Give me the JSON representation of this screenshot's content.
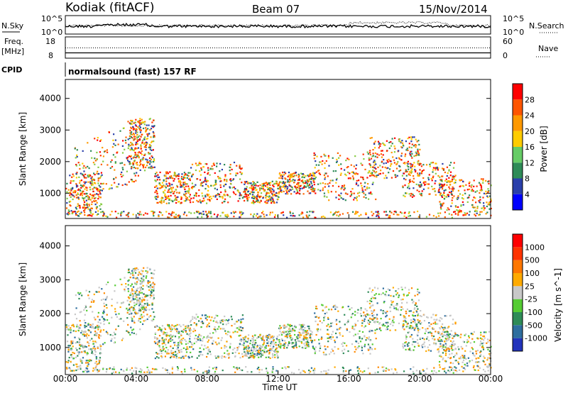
{
  "header": {
    "station": "Kodiak (fitACF)",
    "beam": "Beam 07",
    "date": "15/Nov/2014"
  },
  "labels": {
    "nsky": "N.Sky",
    "nsearch": "N.Search",
    "freq1": "Freq.",
    "freq2": "[MHz]",
    "cpid": "CPID",
    "nave": "Nave",
    "program": "normalsound (fast) 157 RF",
    "sky_hi": "10^5",
    "sky_lo": "10^0",
    "search_hi": "10^5",
    "search_lo": "10^0",
    "freq_hi": "18",
    "freq_lo": "8",
    "nave_hi": "60",
    "nave_lo": "0"
  },
  "chart_data": [
    {
      "type": "line",
      "panel": "noise",
      "series": [
        {
          "name": "N.Sky",
          "style": "solid"
        },
        {
          "name": "N.Search",
          "style": "dotted"
        }
      ],
      "ylabel_left": "N.Sky",
      "ylabel_right": "N.Search",
      "ylim": [
        "10^0",
        "10^5"
      ]
    },
    {
      "type": "line",
      "panel": "frequency",
      "series": [
        {
          "name": "Freq. [MHz]",
          "style": "solid",
          "ylim": [
            8,
            18
          ],
          "value": 10.5
        },
        {
          "name": "Nave",
          "style": "dotted",
          "ylim": [
            0,
            60
          ],
          "value": 25
        }
      ]
    },
    {
      "type": "heatmap",
      "panel": "power",
      "xlabel": "Time UT",
      "ylabel": "Slant Range [km]",
      "x_ticks": [
        "00:00",
        "04:00",
        "08:00",
        "12:00",
        "16:00",
        "20:00",
        "00:00"
      ],
      "y_ticks": [
        "1000",
        "2000",
        "3000",
        "4000"
      ],
      "ylim": [
        200,
        4600
      ],
      "colorbar": {
        "label": "Power [dB]",
        "ticks": [
          "4",
          "8",
          "12",
          "16",
          "20",
          "24",
          "28"
        ],
        "colors": [
          "#0000ff",
          "#2a3faa",
          "#2e8b57",
          "#66cc66",
          "#ffcc00",
          "#ff9900",
          "#ff5500",
          "#ff0000"
        ]
      }
    },
    {
      "type": "heatmap",
      "panel": "velocity",
      "xlabel": "Time UT",
      "ylabel": "Slant Range [km]",
      "x_ticks": [
        "00:00",
        "04:00",
        "08:00",
        "12:00",
        "16:00",
        "20:00",
        "00:00"
      ],
      "y_ticks": [
        "1000",
        "2000",
        "3000",
        "4000"
      ],
      "ylim": [
        200,
        4600
      ],
      "colorbar": {
        "label": "Velocity [m s^-1]",
        "ticks": [
          "1000",
          "500",
          "100",
          "25",
          "-25",
          "-100",
          "-500",
          "-1000"
        ],
        "colors": [
          "#2233bb",
          "#2e6e9e",
          "#2e8b57",
          "#55cc33",
          "#c8c8c8",
          "#ffaa00",
          "#ff7700",
          "#ff3300",
          "#ff0000"
        ]
      }
    }
  ],
  "xaxis_title": "Time UT"
}
